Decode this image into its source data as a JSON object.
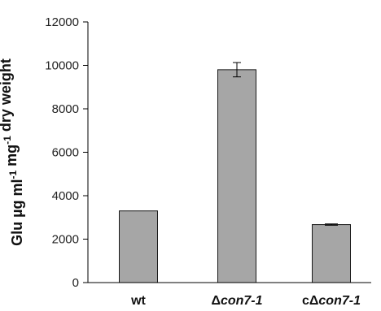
{
  "chart_data": {
    "type": "bar",
    "categories": [
      {
        "label": "wt",
        "parts": [
          {
            "text": "wt",
            "italic": false
          }
        ]
      },
      {
        "label": "Δcon7-1",
        "parts": [
          {
            "text": "Δ",
            "italic": false
          },
          {
            "text": "con7-1",
            "italic": true
          }
        ]
      },
      {
        "label": "cΔcon7-1",
        "parts": [
          {
            "text": "cΔ",
            "italic": false
          },
          {
            "text": "con7-1",
            "italic": true
          }
        ]
      }
    ],
    "values": [
      3300,
      9800,
      2670
    ],
    "errors": [
      0,
      330,
      30
    ],
    "ylim": [
      0,
      12000
    ],
    "yticks": [
      0,
      2000,
      4000,
      6000,
      8000,
      10000,
      12000
    ],
    "ylabel": {
      "text": "Glu µg ml-1 mg-1 dry weight",
      "parts": [
        {
          "text": "Glu µg ml",
          "sup": false
        },
        {
          "text": "-1",
          "sup": true
        },
        {
          "text": " mg",
          "sup": false
        },
        {
          "text": "-1",
          "sup": true
        },
        {
          "text": " dry weight",
          "sup": false
        }
      ]
    },
    "xlabel": "",
    "title": "",
    "grid": false,
    "colors": {
      "bar_fill": "#a6a6a6",
      "bar_stroke": "#1a1a1a",
      "axis": "#000000"
    }
  }
}
